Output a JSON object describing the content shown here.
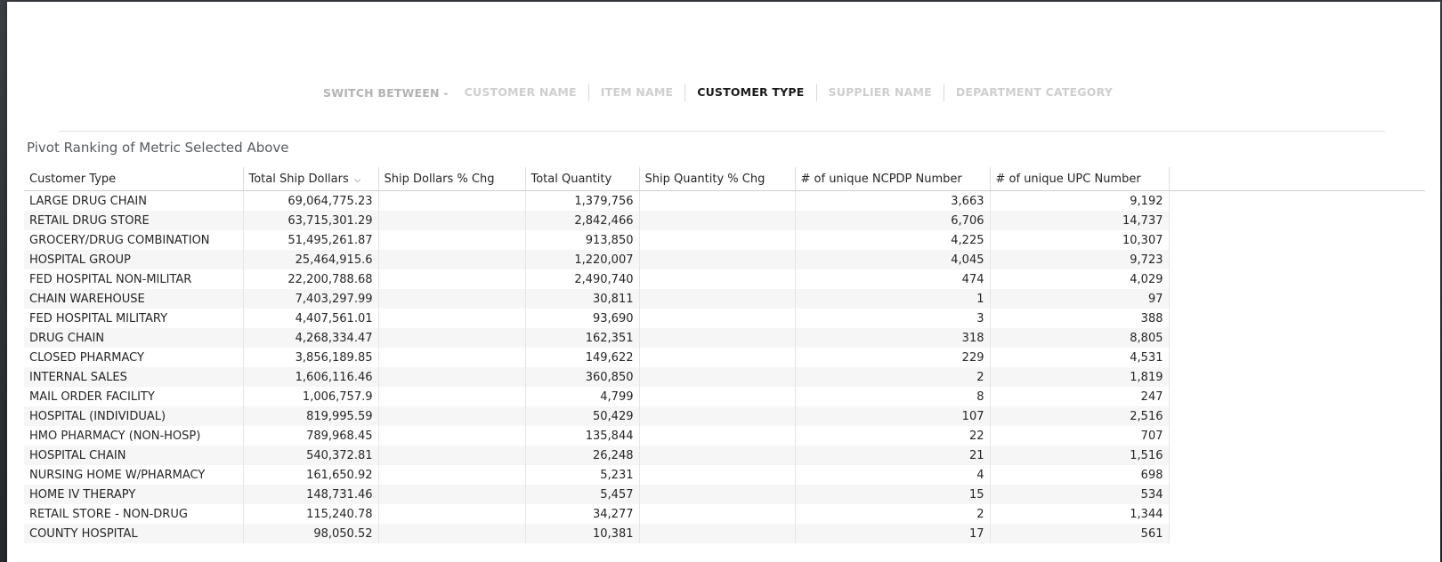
{
  "switcher": {
    "prefix": "SWITCH BETWEEN -",
    "tabs": [
      {
        "label": "CUSTOMER NAME",
        "active": false
      },
      {
        "label": "ITEM NAME",
        "active": false
      },
      {
        "label": "CUSTOMER TYPE",
        "active": true
      },
      {
        "label": "SUPPLIER NAME",
        "active": false
      },
      {
        "label": "DEPARTMENT CATEGORY",
        "active": false
      }
    ]
  },
  "section_title": "Pivot Ranking of Metric Selected Above",
  "table": {
    "columns": [
      "Customer Type",
      "Total Ship Dollars",
      "Ship Dollars % Chg",
      "Total Quantity",
      "Ship Quantity % Chg",
      "# of unique NCPDP Number",
      "# of unique UPC Number"
    ],
    "sort_icon": "chevron-down-icon",
    "rows": [
      [
        "LARGE DRUG CHAIN",
        "69,064,775.23",
        "",
        "1,379,756",
        "",
        "3,663",
        "9,192"
      ],
      [
        "RETAIL DRUG STORE",
        "63,715,301.29",
        "",
        "2,842,466",
        "",
        "6,706",
        "14,737"
      ],
      [
        "GROCERY/DRUG COMBINATION",
        "51,495,261.87",
        "",
        "913,850",
        "",
        "4,225",
        "10,307"
      ],
      [
        "HOSPITAL GROUP",
        "25,464,915.6",
        "",
        "1,220,007",
        "",
        "4,045",
        "9,723"
      ],
      [
        "FED HOSPITAL NON-MILITAR",
        "22,200,788.68",
        "",
        "2,490,740",
        "",
        "474",
        "4,029"
      ],
      [
        "CHAIN WAREHOUSE",
        "7,403,297.99",
        "",
        "30,811",
        "",
        "1",
        "97"
      ],
      [
        "FED HOSPITAL MILITARY",
        "4,407,561.01",
        "",
        "93,690",
        "",
        "3",
        "388"
      ],
      [
        "DRUG CHAIN",
        "4,268,334.47",
        "",
        "162,351",
        "",
        "318",
        "8,805"
      ],
      [
        "CLOSED PHARMACY",
        "3,856,189.85",
        "",
        "149,622",
        "",
        "229",
        "4,531"
      ],
      [
        "INTERNAL SALES",
        "1,606,116.46",
        "",
        "360,850",
        "",
        "2",
        "1,819"
      ],
      [
        "MAIL ORDER FACILITY",
        "1,006,757.9",
        "",
        "4,799",
        "",
        "8",
        "247"
      ],
      [
        "HOSPITAL (INDIVIDUAL)",
        "819,995.59",
        "",
        "50,429",
        "",
        "107",
        "2,516"
      ],
      [
        "HMO PHARMACY (NON-HOSP)",
        "789,968.45",
        "",
        "135,844",
        "",
        "22",
        "707"
      ],
      [
        "HOSPITAL CHAIN",
        "540,372.81",
        "",
        "26,248",
        "",
        "21",
        "1,516"
      ],
      [
        "NURSING HOME W/PHARMACY",
        "161,650.92",
        "",
        "5,231",
        "",
        "4",
        "698"
      ],
      [
        "HOME IV THERAPY",
        "148,731.46",
        "",
        "5,457",
        "",
        "15",
        "534"
      ],
      [
        "RETAIL STORE - NON-DRUG",
        "115,240.78",
        "",
        "34,277",
        "",
        "2",
        "1,344"
      ],
      [
        "COUNTY HOSPITAL",
        "98,050.52",
        "",
        "10,381",
        "",
        "17",
        "561"
      ]
    ]
  }
}
